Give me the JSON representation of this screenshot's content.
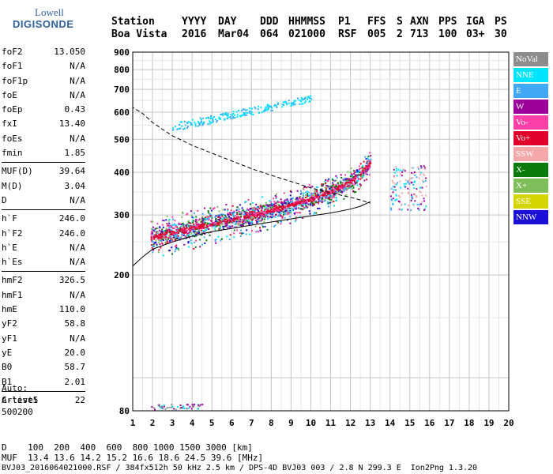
{
  "logo": {
    "line1": "Lowell",
    "line2": "DIGISONDE"
  },
  "header": {
    "labels": [
      "Station",
      "YYYY",
      "DAY",
      "DDD",
      "HHMMSS",
      "P1",
      "FFS",
      "S",
      "AXN",
      "PPS",
      "IGA",
      "PS"
    ],
    "values": [
      "Boa Vista",
      "2016",
      "Mar04",
      "064",
      "021000",
      "RSF",
      "005",
      "2",
      "713",
      "100",
      "03+",
      "30"
    ]
  },
  "params": [
    [
      {
        "k": "foF2",
        "v": "13.050"
      },
      {
        "k": "foF1",
        "v": "N/A"
      },
      {
        "k": "foF1p",
        "v": "N/A"
      },
      {
        "k": "foE",
        "v": "N/A"
      },
      {
        "k": "foEp",
        "v": "0.43"
      },
      {
        "k": "fxI",
        "v": "13.40"
      },
      {
        "k": "foEs",
        "v": "N/A"
      },
      {
        "k": "fmin",
        "v": "1.85"
      }
    ],
    [
      {
        "k": "MUF(D)",
        "v": "39.64"
      },
      {
        "k": "M(D)",
        "v": "3.04"
      },
      {
        "k": "D",
        "v": "N/A"
      }
    ],
    [
      {
        "k": "h`F",
        "v": "246.0"
      },
      {
        "k": "h`F2",
        "v": "246.0"
      },
      {
        "k": "h`E",
        "v": "N/A"
      },
      {
        "k": "h`Es",
        "v": "N/A"
      }
    ],
    [
      {
        "k": "hmF2",
        "v": "326.5"
      },
      {
        "k": "hmF1",
        "v": "N/A"
      },
      {
        "k": "hmE",
        "v": "110.0"
      },
      {
        "k": "yF2",
        "v": "58.8"
      },
      {
        "k": "yF1",
        "v": "N/A"
      },
      {
        "k": "yE",
        "v": "20.0"
      },
      {
        "k": "B0",
        "v": "58.7"
      },
      {
        "k": "B1",
        "v": "2.01"
      }
    ],
    [
      {
        "k": "C-level",
        "v": "22"
      }
    ]
  ],
  "auto": {
    "line1": "Auto:",
    "line2": "Artist5",
    "line3": "500200"
  },
  "legend": [
    {
      "label": "NoVal",
      "color": "#8c8c8c"
    },
    {
      "label": "NNE",
      "color": "#00e5ff"
    },
    {
      "label": "E",
      "color": "#3fa9f5"
    },
    {
      "label": "W",
      "color": "#9b009b"
    },
    {
      "label": "Vo-",
      "color": "#ff3fa8"
    },
    {
      "label": "Vo+",
      "color": "#e0002a"
    },
    {
      "label": "SSW",
      "color": "#f5a8a8"
    },
    {
      "label": "X-",
      "color": "#0a7a0a"
    },
    {
      "label": "X+",
      "color": "#7fbf5a"
    },
    {
      "label": "SSE",
      "color": "#d4d400"
    },
    {
      "label": "NNW",
      "color": "#1a0fd6"
    }
  ],
  "footer": {
    "line1": "D    100  200  400  600  800 1000 1500 3000 [km]",
    "line2": "MUF  13.4 13.6 14.2 15.2 16.6 18.6 24.5 39.6 [MHz]",
    "line3": "BVJ03_2016064021000.RSF / 384fx512h 50 kHz 2.5 km / DPS-4D BVJ03 003 / 2.8 N 299.3 E  Ion2Png 1.3.20"
  },
  "chart_data": {
    "type": "scatter",
    "xlim": [
      1,
      20
    ],
    "ylim": [
      80,
      900
    ],
    "x_ticks": [
      1,
      2,
      3,
      4,
      5,
      6,
      7,
      8,
      9,
      10,
      11,
      12,
      13,
      14,
      15,
      16,
      17,
      18,
      19,
      20
    ],
    "y_ticks": [
      80,
      200,
      300,
      400,
      500,
      600,
      700,
      800,
      900
    ],
    "grid": true,
    "grid_x_minor": 0.5,
    "grid_y_minor": 50,
    "dashed_curve": {
      "x": [
        0.9,
        1.5,
        2,
        2.5,
        3,
        4,
        5,
        6,
        7,
        8,
        9,
        10,
        11,
        12,
        12.5,
        13
      ],
      "y": [
        625,
        595,
        560,
        535,
        512,
        480,
        455,
        432,
        410,
        392,
        376,
        360,
        348,
        338,
        332,
        325
      ]
    },
    "solid_curve": {
      "x": [
        0.9,
        1.5,
        2,
        3,
        4,
        5,
        6,
        7,
        8,
        9,
        10,
        11,
        12,
        12.5,
        13
      ],
      "y": [
        210,
        226,
        238,
        250,
        260,
        268,
        274,
        280,
        286,
        292,
        298,
        304,
        312,
        318,
        328
      ]
    },
    "trace_main": {
      "x": [
        1.9,
        2.5,
        3,
        4,
        5,
        6,
        7,
        8,
        9,
        10,
        11,
        12,
        12.5,
        13
      ],
      "y": [
        258,
        262,
        268,
        275,
        284,
        292,
        300,
        310,
        322,
        336,
        352,
        378,
        400,
        430
      ]
    },
    "trace_upper": {
      "x": [
        3,
        4,
        5,
        6,
        7,
        8,
        9,
        10
      ],
      "y": [
        545,
        560,
        575,
        592,
        608,
        625,
        642,
        660
      ]
    }
  }
}
